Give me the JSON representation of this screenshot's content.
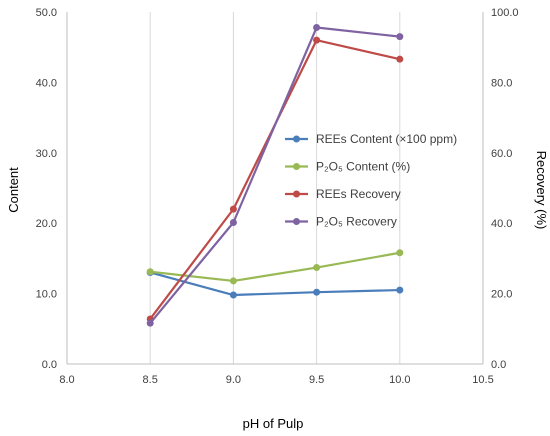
{
  "chart_data": {
    "type": "line",
    "xlabel": "pH of Pulp",
    "ylabel_left": "Content",
    "ylabel_right": "Recovery (%)",
    "x_range": [
      8.0,
      10.5
    ],
    "x_ticks": [
      "8.0",
      "8.5",
      "9.0",
      "9.5",
      "10.0",
      "10.5"
    ],
    "y_left_range": [
      0,
      50
    ],
    "y_left_ticks": [
      "0.0",
      "10.0",
      "20.0",
      "30.0",
      "40.0",
      "50.0"
    ],
    "y_right_range": [
      0,
      100
    ],
    "y_right_ticks": [
      "0.0",
      "20.0",
      "40.0",
      "60.0",
      "80.0",
      "100.0"
    ],
    "grid": "vertical",
    "legend_position": "right-center",
    "x": [
      8.5,
      9.0,
      9.5,
      10.0
    ],
    "series": [
      {
        "name": "REEs Content (×100 ppm)",
        "axis": "left",
        "color": "#4a7ebb",
        "values": [
          13.0,
          9.8,
          10.2,
          10.5
        ]
      },
      {
        "name": "P₂O₅ Content (%)",
        "axis": "left",
        "color": "#98b954",
        "values": [
          13.1,
          11.8,
          13.7,
          15.8
        ]
      },
      {
        "name": "REEs Recovery",
        "axis": "right",
        "color": "#be4b48",
        "values": [
          12.8,
          44.0,
          92.0,
          86.6
        ]
      },
      {
        "name": "P₂O₅ Recovery",
        "axis": "right",
        "color": "#7e62a1",
        "values": [
          11.6,
          40.2,
          95.6,
          93.0
        ]
      }
    ]
  }
}
